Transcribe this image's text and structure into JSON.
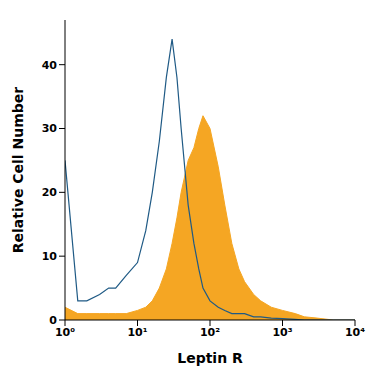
{
  "chart_data": {
    "type": "area",
    "x_label": "Leptin R",
    "y_label": "Relative Cell Number",
    "log": "x",
    "grid": false,
    "x": [
      1,
      1.5,
      2,
      3,
      4,
      5,
      7,
      10,
      13,
      16,
      20,
      25,
      30,
      35,
      40,
      50,
      60,
      70,
      80,
      100,
      130,
      160,
      200,
      250,
      300,
      400,
      500,
      700,
      1000,
      1500,
      2000,
      3000,
      5000,
      10000
    ],
    "series": [
      {
        "type": "area",
        "color": "#f5a623",
        "values": [
          2,
          1,
          1,
          1,
          1,
          1,
          1,
          1.5,
          2,
          3,
          5,
          8,
          12,
          16,
          20,
          25,
          27,
          30,
          32,
          30,
          24,
          18,
          12,
          8,
          6,
          4,
          3,
          2,
          1.5,
          1,
          0.5,
          0.3,
          0,
          0
        ]
      },
      {
        "type": "line",
        "color": "#1f5a85",
        "values": [
          25,
          3,
          3,
          4,
          5,
          5,
          7,
          9,
          14,
          20,
          28,
          38,
          44,
          38,
          30,
          18,
          12,
          8,
          5,
          3,
          2,
          1.5,
          1,
          1,
          1,
          0.5,
          0.5,
          0.3,
          0.2,
          0.1,
          0,
          0,
          0,
          0
        ]
      }
    ],
    "xlim": [
      1,
      10000
    ],
    "xticks": [
      {
        "value": 1,
        "label": "10⁰"
      },
      {
        "value": 10,
        "label": "10¹"
      },
      {
        "value": 100,
        "label": "10²"
      },
      {
        "value": 1000,
        "label": "10³"
      },
      {
        "value": 10000,
        "label": "10⁴"
      }
    ],
    "ylim": [
      0,
      47
    ],
    "yticks": [
      0,
      10,
      20,
      30,
      40
    ]
  }
}
